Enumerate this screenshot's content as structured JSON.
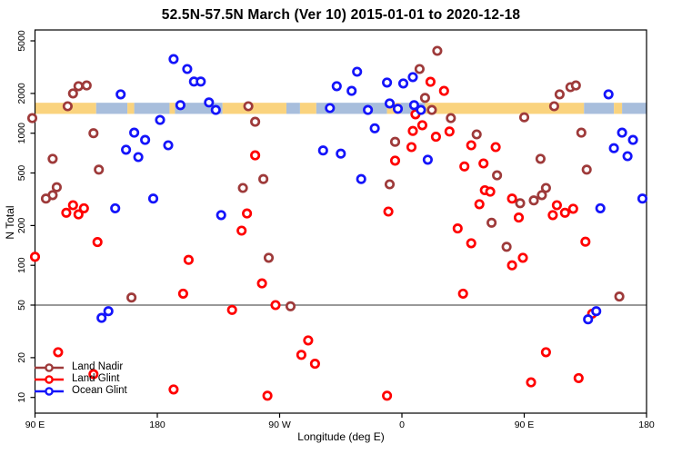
{
  "window": {
    "title": "52.5N-57.5N March (Ver 10)   2015-01-01 to 2020-12-18"
  },
  "chart_data": {
    "type": "scatter",
    "title": "52.5N-57.5N March (Ver 10)   2015-01-01 to 2020-12-18",
    "xlabel": "Longitude (deg E)",
    "ylabel": "N Total",
    "x_axis": {
      "note": "longitude axis starts at 90E and wraps eastward through 180, 90W, 0, 90E to 180",
      "range_deg_extended": [
        90,
        540
      ],
      "ticks": [
        {
          "pos": 90,
          "label": "90 E"
        },
        {
          "pos": 180,
          "label": "180"
        },
        {
          "pos": 270,
          "label": "90 W"
        },
        {
          "pos": 360,
          "label": "0"
        },
        {
          "pos": 450,
          "label": "90 E"
        },
        {
          "pos": 540,
          "label": "180"
        }
      ]
    },
    "y_axis": {
      "scale": "log",
      "ticks": [
        10,
        20,
        50,
        100,
        200,
        500,
        1000,
        2000,
        5000
      ],
      "range": [
        8,
        6500
      ]
    },
    "reference_line": {
      "n": 50,
      "color": "#999999"
    },
    "land_ocean_band": {
      "n_range": [
        1400,
        1700
      ],
      "land_color": "#FAD37E",
      "ocean_color": "#A8BEDC",
      "segments": [
        {
          "from": 90,
          "to": 135,
          "type": "land"
        },
        {
          "from": 135,
          "to": 158,
          "type": "ocean"
        },
        {
          "from": 158,
          "to": 163,
          "type": "land"
        },
        {
          "from": 163,
          "to": 189,
          "type": "ocean"
        },
        {
          "from": 189,
          "to": 193,
          "type": "land"
        },
        {
          "from": 193,
          "to": 228,
          "type": "ocean"
        },
        {
          "from": 228,
          "to": 275,
          "type": "land"
        },
        {
          "from": 275,
          "to": 285,
          "type": "ocean"
        },
        {
          "from": 285,
          "to": 297,
          "type": "land"
        },
        {
          "from": 297,
          "to": 349,
          "type": "ocean"
        },
        {
          "from": 349,
          "to": 359,
          "type": "land"
        },
        {
          "from": 359,
          "to": 377,
          "type": "ocean"
        },
        {
          "from": 377,
          "to": 494,
          "type": "land"
        },
        {
          "from": 494,
          "to": 516,
          "type": "ocean"
        },
        {
          "from": 516,
          "to": 522,
          "type": "land"
        },
        {
          "from": 522,
          "to": 540,
          "type": "ocean"
        }
      ]
    },
    "series": [
      {
        "name": "Land Nadir",
        "color": "#9E3A3A",
        "points": [
          [
            88,
            1300
          ],
          [
            118,
            2000
          ],
          [
            122,
            2270
          ],
          [
            128,
            2300
          ],
          [
            114,
            1600
          ],
          [
            133,
            1000
          ],
          [
            103,
            640
          ],
          [
            137,
            530
          ],
          [
            106,
            390
          ],
          [
            103,
            340
          ],
          [
            98,
            320
          ],
          [
            161,
            57
          ],
          [
            247,
            1600
          ],
          [
            252,
            1220
          ],
          [
            258,
            450
          ],
          [
            243,
            385
          ],
          [
            262,
            114
          ],
          [
            278,
            49
          ],
          [
            386,
            4200
          ],
          [
            373,
            3060
          ],
          [
            377,
            1850
          ],
          [
            382,
            1500
          ],
          [
            355,
            860
          ],
          [
            351,
            410
          ],
          [
            396,
            1300
          ],
          [
            450,
            1320
          ],
          [
            415,
            980
          ],
          [
            430,
            480
          ],
          [
            462,
            640
          ],
          [
            496,
            530
          ],
          [
            466,
            385
          ],
          [
            463,
            340
          ],
          [
            457,
            310
          ],
          [
            447,
            295
          ],
          [
            476,
            1970
          ],
          [
            484,
            2230
          ],
          [
            488,
            2300
          ],
          [
            472,
            1600
          ],
          [
            492,
            1010
          ],
          [
            426,
            210
          ],
          [
            437,
            138
          ],
          [
            520,
            58
          ]
        ]
      },
      {
        "name": "Land Glint",
        "color": "#FF0000",
        "points": [
          [
            90,
            116
          ],
          [
            118,
            285
          ],
          [
            126,
            270
          ],
          [
            113,
            250
          ],
          [
            122,
            243
          ],
          [
            252,
            680
          ],
          [
            246,
            247
          ],
          [
            136,
            150
          ],
          [
            203,
            110
          ],
          [
            199,
            61
          ],
          [
            107,
            22
          ],
          [
            133,
            15
          ],
          [
            192,
            11.5
          ],
          [
            242,
            183
          ],
          [
            257,
            73
          ],
          [
            267,
            50
          ],
          [
            235,
            46
          ],
          [
            291,
            27
          ],
          [
            286,
            21
          ],
          [
            296,
            18
          ],
          [
            261,
            10.3
          ],
          [
            349,
            10.3
          ],
          [
            381,
            2450
          ],
          [
            391,
            2090
          ],
          [
            370,
            1390
          ],
          [
            375,
            1150
          ],
          [
            368,
            1040
          ],
          [
            385,
            940
          ],
          [
            355,
            620
          ],
          [
            367,
            785
          ],
          [
            350,
            255
          ],
          [
            395,
            1030
          ],
          [
            411,
            810
          ],
          [
            429,
            785
          ],
          [
            406,
            560
          ],
          [
            420,
            590
          ],
          [
            421,
            370
          ],
          [
            425,
            361
          ],
          [
            417,
            290
          ],
          [
            441,
            320
          ],
          [
            474,
            285
          ],
          [
            486,
            268
          ],
          [
            480,
            250
          ],
          [
            471,
            240
          ],
          [
            401,
            190
          ],
          [
            411,
            147
          ],
          [
            495,
            151
          ],
          [
            441,
            100
          ],
          [
            449,
            114
          ],
          [
            405,
            61
          ],
          [
            500,
            43
          ],
          [
            466,
            22
          ],
          [
            455,
            13
          ],
          [
            490,
            14
          ],
          [
            446,
            230
          ]
        ]
      },
      {
        "name": "Ocean Glint",
        "color": "#1414FA",
        "points": [
          [
            192,
            3640
          ],
          [
            202,
            3060
          ],
          [
            207,
            2460
          ],
          [
            212,
            2460
          ],
          [
            153,
            1970
          ],
          [
            218,
            1710
          ],
          [
            223,
            1500
          ],
          [
            197,
            1630
          ],
          [
            182,
            1260
          ],
          [
            163,
            1010
          ],
          [
            171,
            890
          ],
          [
            188,
            810
          ],
          [
            157,
            750
          ],
          [
            166,
            660
          ],
          [
            177,
            320
          ],
          [
            149,
            270
          ],
          [
            227,
            240
          ],
          [
            327,
            2920
          ],
          [
            312,
            2270
          ],
          [
            323,
            2090
          ],
          [
            349,
            2420
          ],
          [
            361,
            2380
          ],
          [
            368,
            2660
          ],
          [
            307,
            1550
          ],
          [
            335,
            1500
          ],
          [
            351,
            1680
          ],
          [
            357,
            1530
          ],
          [
            369,
            1630
          ],
          [
            374,
            1500
          ],
          [
            340,
            1090
          ],
          [
            302,
            740
          ],
          [
            315,
            700
          ],
          [
            379,
            630
          ],
          [
            330,
            450
          ],
          [
            139,
            40
          ],
          [
            144,
            45
          ],
          [
            512,
            1970
          ],
          [
            522,
            1010
          ],
          [
            530,
            890
          ],
          [
            516,
            770
          ],
          [
            526,
            670
          ],
          [
            537,
            320
          ],
          [
            506,
            270
          ],
          [
            497,
            39
          ],
          [
            503,
            45
          ]
        ]
      }
    ],
    "legend": {
      "position": "bottom-left",
      "entries": [
        "Land Nadir",
        "Land Glint",
        "Ocean Glint"
      ]
    }
  }
}
